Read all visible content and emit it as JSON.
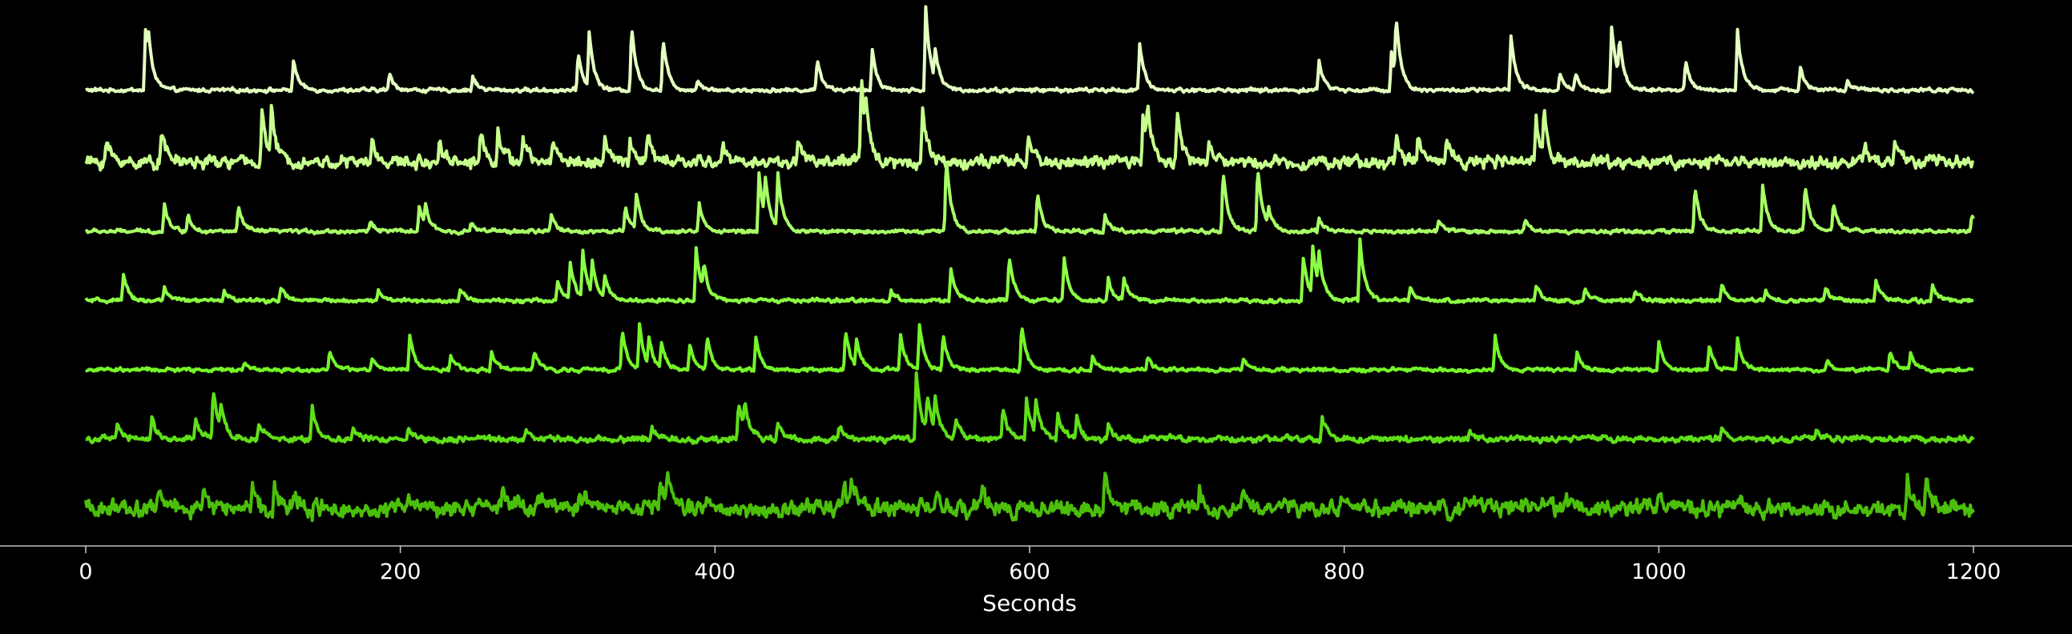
{
  "chart_data": {
    "type": "line",
    "title": "",
    "xlabel": "Seconds",
    "ylabel": "",
    "xlim": [
      0,
      1200
    ],
    "x_ticks": [
      0,
      200,
      400,
      600,
      800,
      1000,
      1200
    ],
    "x_tick_labels": [
      "0",
      "200",
      "400",
      "600",
      "800",
      "1000",
      "1200"
    ],
    "y_axis_visible": false,
    "grid": false,
    "legend": "none",
    "background": "#000000",
    "axis_color": "#bfbfbf",
    "series": [
      {
        "color": "#e4ffc0",
        "baseline": 0.05,
        "noise": 0.05,
        "peaks": [
          [
            38,
            1.1
          ],
          [
            40,
            0.45
          ],
          [
            132,
            0.55
          ],
          [
            193,
            0.3
          ],
          [
            246,
            0.25
          ],
          [
            313,
            0.7
          ],
          [
            320,
            1.0
          ],
          [
            347,
            1.2
          ],
          [
            367,
            0.95
          ],
          [
            389,
            0.2
          ],
          [
            465,
            0.6
          ],
          [
            500,
            0.75
          ],
          [
            534,
            1.5
          ],
          [
            540,
            0.55
          ],
          [
            670,
            0.85
          ],
          [
            784,
            0.55
          ],
          [
            830,
            0.7
          ],
          [
            833,
            1.1
          ],
          [
            906,
            1.0
          ],
          [
            937,
            0.3
          ],
          [
            947,
            0.3
          ],
          [
            970,
            1.2
          ],
          [
            975,
            0.7
          ],
          [
            1017,
            0.55
          ],
          [
            1050,
            1.1
          ],
          [
            1090,
            0.45
          ],
          [
            1120,
            0.15
          ]
        ]
      },
      {
        "color": "#c6ff8c",
        "baseline": 0.0,
        "noise": 0.16,
        "peaks": [
          [
            13,
            0.4
          ],
          [
            48,
            0.6
          ],
          [
            112,
            0.95
          ],
          [
            118,
            0.8
          ],
          [
            182,
            0.35
          ],
          [
            225,
            0.45
          ],
          [
            251,
            0.55
          ],
          [
            262,
            0.6
          ],
          [
            278,
            0.4
          ],
          [
            297,
            0.45
          ],
          [
            330,
            0.4
          ],
          [
            346,
            0.4
          ],
          [
            357,
            0.5
          ],
          [
            405,
            0.3
          ],
          [
            453,
            0.45
          ],
          [
            493,
            1.6
          ],
          [
            496,
            0.5
          ],
          [
            532,
            1.0
          ],
          [
            599,
            0.45
          ],
          [
            672,
            0.85
          ],
          [
            675,
            0.7
          ],
          [
            694,
            0.95
          ],
          [
            714,
            0.35
          ],
          [
            833,
            0.4
          ],
          [
            847,
            0.55
          ],
          [
            865,
            0.55
          ],
          [
            922,
            0.75
          ],
          [
            927,
            0.85
          ],
          [
            1131,
            0.3
          ],
          [
            1150,
            0.4
          ]
        ]
      },
      {
        "color": "#a8ff66",
        "baseline": 0.0,
        "noise": 0.05,
        "peaks": [
          [
            50,
            0.5
          ],
          [
            65,
            0.3
          ],
          [
            97,
            0.45
          ],
          [
            181,
            0.2
          ],
          [
            212,
            0.45
          ],
          [
            216,
            0.35
          ],
          [
            245,
            0.15
          ],
          [
            296,
            0.3
          ],
          [
            343,
            0.45
          ],
          [
            350,
            0.65
          ],
          [
            390,
            0.5
          ],
          [
            428,
            1.1
          ],
          [
            432,
            0.7
          ],
          [
            440,
            0.95
          ],
          [
            547,
            1.35
          ],
          [
            605,
            0.7
          ],
          [
            648,
            0.3
          ],
          [
            723,
            1.1
          ],
          [
            745,
            1.2
          ],
          [
            752,
            0.3
          ],
          [
            784,
            0.25
          ],
          [
            860,
            0.2
          ],
          [
            915,
            0.2
          ],
          [
            1023,
            0.85
          ],
          [
            1066,
            0.85
          ],
          [
            1093,
            0.85
          ],
          [
            1111,
            0.5
          ],
          [
            1199,
            0.3
          ]
        ]
      },
      {
        "color": "#8cff44",
        "baseline": 0.0,
        "noise": 0.05,
        "peaks": [
          [
            24,
            0.45
          ],
          [
            50,
            0.25
          ],
          [
            88,
            0.2
          ],
          [
            124,
            0.25
          ],
          [
            186,
            0.2
          ],
          [
            238,
            0.2
          ],
          [
            300,
            0.35
          ],
          [
            308,
            0.7
          ],
          [
            316,
            0.85
          ],
          [
            322,
            0.6
          ],
          [
            330,
            0.4
          ],
          [
            388,
            1.0
          ],
          [
            393,
            0.5
          ],
          [
            512,
            0.2
          ],
          [
            550,
            0.55
          ],
          [
            587,
            0.85
          ],
          [
            622,
            0.8
          ],
          [
            650,
            0.4
          ],
          [
            660,
            0.4
          ],
          [
            774,
            0.8
          ],
          [
            780,
            0.9
          ],
          [
            784,
            0.6
          ],
          [
            810,
            1.1
          ],
          [
            842,
            0.25
          ],
          [
            922,
            0.3
          ],
          [
            953,
            0.2
          ],
          [
            985,
            0.2
          ],
          [
            1040,
            0.3
          ],
          [
            1068,
            0.2
          ],
          [
            1106,
            0.25
          ],
          [
            1138,
            0.35
          ],
          [
            1174,
            0.3
          ]
        ]
      },
      {
        "color": "#74f528",
        "baseline": 0.0,
        "noise": 0.05,
        "peaks": [
          [
            101,
            0.15
          ],
          [
            155,
            0.35
          ],
          [
            182,
            0.2
          ],
          [
            206,
            0.65
          ],
          [
            232,
            0.3
          ],
          [
            258,
            0.35
          ],
          [
            285,
            0.35
          ],
          [
            341,
            0.75
          ],
          [
            352,
            0.8
          ],
          [
            358,
            0.5
          ],
          [
            366,
            0.45
          ],
          [
            384,
            0.45
          ],
          [
            395,
            0.6
          ],
          [
            426,
            0.6
          ],
          [
            483,
            0.7
          ],
          [
            490,
            0.5
          ],
          [
            518,
            0.65
          ],
          [
            530,
            0.8
          ],
          [
            545,
            0.65
          ],
          [
            595,
            0.85
          ],
          [
            640,
            0.25
          ],
          [
            675,
            0.25
          ],
          [
            736,
            0.2
          ],
          [
            896,
            0.65
          ],
          [
            948,
            0.3
          ],
          [
            1000,
            0.55
          ],
          [
            1032,
            0.45
          ],
          [
            1050,
            0.55
          ],
          [
            1107,
            0.2
          ],
          [
            1147,
            0.35
          ],
          [
            1160,
            0.3
          ]
        ]
      },
      {
        "color": "#5fdf18",
        "baseline": 0.0,
        "noise": 0.08,
        "peaks": [
          [
            20,
            0.3
          ],
          [
            42,
            0.4
          ],
          [
            70,
            0.35
          ],
          [
            81,
            0.95
          ],
          [
            86,
            0.4
          ],
          [
            110,
            0.3
          ],
          [
            144,
            0.6
          ],
          [
            170,
            0.2
          ],
          [
            205,
            0.25
          ],
          [
            280,
            0.15
          ],
          [
            360,
            0.2
          ],
          [
            415,
            0.7
          ],
          [
            419,
            0.5
          ],
          [
            440,
            0.3
          ],
          [
            479,
            0.3
          ],
          [
            528,
            1.2
          ],
          [
            535,
            0.7
          ],
          [
            540,
            0.6
          ],
          [
            553,
            0.35
          ],
          [
            583,
            0.55
          ],
          [
            598,
            0.8
          ],
          [
            604,
            0.6
          ],
          [
            618,
            0.5
          ],
          [
            630,
            0.4
          ],
          [
            650,
            0.3
          ],
          [
            786,
            0.4
          ],
          [
            880,
            0.15
          ],
          [
            1040,
            0.2
          ],
          [
            1100,
            0.15
          ]
        ]
      },
      {
        "color": "#4bbf0a",
        "baseline": 0.0,
        "noise": 0.22,
        "peaks": [
          [
            46,
            0.35
          ],
          [
            75,
            0.4
          ],
          [
            106,
            0.4
          ],
          [
            120,
            0.45
          ],
          [
            132,
            0.3
          ],
          [
            205,
            0.35
          ],
          [
            265,
            0.35
          ],
          [
            288,
            0.25
          ],
          [
            314,
            0.3
          ],
          [
            365,
            0.5
          ],
          [
            370,
            0.45
          ],
          [
            395,
            0.3
          ],
          [
            482,
            0.5
          ],
          [
            487,
            0.4
          ],
          [
            541,
            0.3
          ],
          [
            570,
            0.3
          ],
          [
            648,
            0.6
          ],
          [
            708,
            0.35
          ],
          [
            736,
            0.3
          ],
          [
            798,
            0.25
          ],
          [
            877,
            0.25
          ],
          [
            941,
            0.25
          ],
          [
            1000,
            0.3
          ],
          [
            1050,
            0.25
          ],
          [
            1158,
            0.45
          ],
          [
            1170,
            0.55
          ]
        ]
      }
    ]
  }
}
